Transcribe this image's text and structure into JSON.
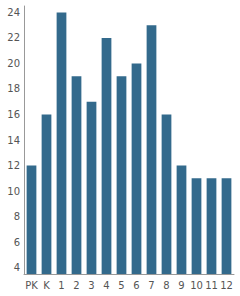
{
  "chart_data": {
    "type": "bar",
    "categories": [
      "PK",
      "K",
      "1",
      "2",
      "3",
      "4",
      "5",
      "6",
      "7",
      "8",
      "9",
      "10",
      "11",
      "12"
    ],
    "values": [
      12,
      16,
      24,
      19,
      17,
      22,
      19,
      20,
      23,
      16,
      12,
      11,
      11,
      11
    ],
    "color": "#336a8c",
    "ylim": [
      3.5,
      24.5
    ],
    "yticks": [
      4,
      6,
      8,
      10,
      12,
      14,
      16,
      18,
      20,
      22,
      24
    ],
    "grid": false
  }
}
